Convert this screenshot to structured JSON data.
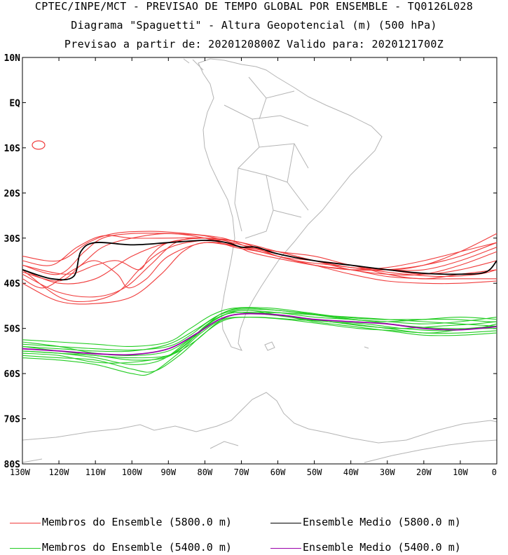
{
  "title": {
    "line1": "CPTEC/INPE/MCT - PREVISAO DE TEMPO GLOBAL POR ENSEMBLE - TQ0126L028",
    "line2": "Diagrama \"Spaguetti\" - Altura Geopotencial (m) (500 hPa)",
    "line3": "Previsao a partir de: 2020120800Z  Valido para: 2020121700Z"
  },
  "axes": {
    "lat_labels": [
      "10N",
      "EQ",
      "10S",
      "20S",
      "30S",
      "40S",
      "50S",
      "60S",
      "70S",
      "80S"
    ],
    "lat_values": [
      10,
      0,
      -10,
      -20,
      -30,
      -40,
      -50,
      -60,
      -70,
      -80
    ],
    "lon_labels": [
      "130W",
      "120W",
      "110W",
      "100W",
      "90W",
      "80W",
      "70W",
      "60W",
      "50W",
      "40W",
      "30W",
      "20W",
      "10W",
      "0"
    ],
    "lon_values": [
      -130,
      -120,
      -110,
      -100,
      -90,
      -80,
      -70,
      -60,
      -50,
      -40,
      -30,
      -20,
      -10,
      0
    ],
    "lon_range": [
      -130,
      0
    ],
    "lat_range": [
      -80,
      10
    ]
  },
  "colors": {
    "member_5800": "#f03c3c",
    "mean_5800": "#000000",
    "member_5400": "#22cc22",
    "mean_5400": "#9900aa",
    "coast": "#b4b4b4"
  },
  "legend": {
    "items": [
      {
        "label": "Membros do Ensemble (5800.0 m)",
        "color": "#f03c3c"
      },
      {
        "label": "Ensemble Medio (5800.0 m)",
        "color": "#000000"
      },
      {
        "label": "Membros do Ensemble (5400.0 m)",
        "color": "#22cc22"
      },
      {
        "label": "Ensemble Medio (5400.0 m)",
        "color": "#9900aa"
      }
    ]
  },
  "chart_data": {
    "type": "map-contours",
    "mean_5800": [
      [
        -130,
        -37
      ],
      [
        -122,
        -39
      ],
      [
        -116,
        -38.5
      ],
      [
        -114,
        -33
      ],
      [
        -110,
        -31
      ],
      [
        -100,
        -31.5
      ],
      [
        -90,
        -31
      ],
      [
        -80,
        -30.5
      ],
      [
        -74,
        -31
      ],
      [
        -70,
        -32
      ],
      [
        -66,
        -32
      ],
      [
        -60,
        -33.5
      ],
      [
        -50,
        -35
      ],
      [
        -40,
        -36
      ],
      [
        -30,
        -37
      ],
      [
        -20,
        -37.8
      ],
      [
        -10,
        -38
      ],
      [
        -3,
        -37.5
      ],
      [
        0,
        -35
      ]
    ],
    "mean_5400": [
      [
        -130,
        -54.5
      ],
      [
        -120,
        -55
      ],
      [
        -110,
        -55.6
      ],
      [
        -100,
        -55.8
      ],
      [
        -90,
        -54.5
      ],
      [
        -82,
        -51
      ],
      [
        -76,
        -48
      ],
      [
        -70,
        -46.8
      ],
      [
        -60,
        -47
      ],
      [
        -50,
        -48
      ],
      [
        -40,
        -48.5
      ],
      [
        -30,
        -49
      ],
      [
        -20,
        -50
      ],
      [
        -10,
        -50.3
      ],
      [
        0,
        -49.6
      ]
    ],
    "members_5800": [
      [
        [
          -130,
          -37
        ],
        [
          -120,
          -40
        ],
        [
          -110,
          -39
        ],
        [
          -100,
          -34
        ],
        [
          -90,
          -31
        ],
        [
          -80,
          -30
        ],
        [
          -70,
          -31
        ],
        [
          -60,
          -33
        ],
        [
          -50,
          -35
        ],
        [
          -40,
          -37
        ],
        [
          -30,
          -38
        ],
        [
          -20,
          -38
        ],
        [
          -10,
          -36
        ],
        [
          0,
          -33
        ]
      ],
      [
        [
          -130,
          -36
        ],
        [
          -120,
          -38
        ],
        [
          -113,
          -33
        ],
        [
          -108,
          -30
        ],
        [
          -100,
          -29
        ],
        [
          -90,
          -29
        ],
        [
          -80,
          -29.5
        ],
        [
          -70,
          -31.5
        ],
        [
          -60,
          -33
        ],
        [
          -50,
          -34
        ],
        [
          -40,
          -36
        ],
        [
          -30,
          -37
        ],
        [
          -20,
          -36
        ],
        [
          -10,
          -33
        ],
        [
          0,
          -29
        ]
      ],
      [
        [
          -130,
          -38
        ],
        [
          -120,
          -42
        ],
        [
          -110,
          -43
        ],
        [
          -102,
          -41
        ],
        [
          -95,
          -36
        ],
        [
          -88,
          -31
        ],
        [
          -80,
          -30
        ],
        [
          -70,
          -32
        ],
        [
          -60,
          -34
        ],
        [
          -50,
          -36
        ],
        [
          -40,
          -37
        ],
        [
          -30,
          -38.5
        ],
        [
          -20,
          -39
        ],
        [
          -10,
          -39
        ],
        [
          0,
          -39
        ]
      ],
      [
        [
          -130,
          -40
        ],
        [
          -120,
          -44
        ],
        [
          -110,
          -44.5
        ],
        [
          -100,
          -43
        ],
        [
          -92,
          -38
        ],
        [
          -86,
          -33
        ],
        [
          -80,
          -31
        ],
        [
          -70,
          -32
        ],
        [
          -60,
          -33
        ],
        [
          -50,
          -35
        ],
        [
          -40,
          -36
        ],
        [
          -30,
          -37
        ],
        [
          -20,
          -38
        ],
        [
          -10,
          -37
        ],
        [
          0,
          -35
        ]
      ],
      [
        [
          -130,
          -35
        ],
        [
          -122,
          -36
        ],
        [
          -115,
          -32
        ],
        [
          -108,
          -29.5
        ],
        [
          -100,
          -30
        ],
        [
          -90,
          -30
        ],
        [
          -80,
          -30
        ],
        [
          -70,
          -31
        ],
        [
          -60,
          -34
        ],
        [
          -50,
          -36
        ],
        [
          -40,
          -38
        ],
        [
          -30,
          -39.5
        ],
        [
          -20,
          -40
        ],
        [
          -10,
          -40
        ],
        [
          0,
          -39.5
        ]
      ],
      [
        [
          -130,
          -34
        ],
        [
          -120,
          -35
        ],
        [
          -112,
          -31
        ],
        [
          -105,
          -29
        ],
        [
          -95,
          -28.5
        ],
        [
          -85,
          -29
        ],
        [
          -75,
          -30
        ],
        [
          -68,
          -32
        ],
        [
          -60,
          -33.5
        ],
        [
          -50,
          -35
        ],
        [
          -40,
          -36.5
        ],
        [
          -30,
          -37
        ],
        [
          -20,
          -37
        ],
        [
          -10,
          -35
        ],
        [
          0,
          -32
        ]
      ],
      [
        [
          -130,
          -39
        ],
        [
          -124,
          -41
        ],
        [
          -116,
          -37
        ],
        [
          -110,
          -35
        ],
        [
          -104,
          -38
        ],
        [
          -101,
          -41
        ],
        [
          -96,
          -39
        ],
        [
          -90,
          -34
        ],
        [
          -80,
          -31
        ],
        [
          -70,
          -32
        ],
        [
          -60,
          -34
        ],
        [
          -50,
          -36
        ],
        [
          -40,
          -37
        ],
        [
          -30,
          -37
        ],
        [
          -20,
          -36
        ],
        [
          -10,
          -34
        ],
        [
          0,
          -31
        ]
      ],
      [
        [
          -130,
          -36
        ],
        [
          -118,
          -38
        ],
        [
          -110,
          -36
        ],
        [
          -104,
          -35
        ],
        [
          -98,
          -37
        ],
        [
          -95,
          -34
        ],
        [
          -90,
          -31
        ],
        [
          -80,
          -30
        ],
        [
          -70,
          -31
        ],
        [
          -60,
          -34
        ],
        [
          -50,
          -35
        ],
        [
          -40,
          -36
        ],
        [
          -30,
          -38
        ],
        [
          -20,
          -39
        ],
        [
          -10,
          -38
        ],
        [
          0,
          -37
        ]
      ],
      [
        [
          -130,
          -37
        ],
        [
          -120,
          -43
        ],
        [
          -112,
          -44
        ],
        [
          -104,
          -42
        ],
        [
          -98,
          -37
        ],
        [
          -92,
          -33
        ],
        [
          -85,
          -31
        ],
        [
          -75,
          -30.5
        ],
        [
          -68,
          -33
        ],
        [
          -60,
          -34.5
        ],
        [
          -50,
          -36
        ],
        [
          -40,
          -37
        ],
        [
          -30,
          -36.5
        ],
        [
          -20,
          -35
        ],
        [
          -10,
          -33
        ],
        [
          0,
          -31
        ]
      ],
      [
        [
          -130,
          -37.5
        ],
        [
          -120,
          -39.5
        ],
        [
          -114,
          -36
        ],
        [
          -108,
          -32
        ],
        [
          -100,
          -30
        ],
        [
          -90,
          -29
        ],
        [
          -80,
          -30
        ],
        [
          -72,
          -32
        ],
        [
          -65,
          -33
        ],
        [
          -55,
          -35
        ],
        [
          -45,
          -36
        ],
        [
          -35,
          -37
        ],
        [
          -25,
          -38
        ],
        [
          -15,
          -38.5
        ],
        [
          -5,
          -38
        ],
        [
          0,
          -37
        ]
      ]
    ],
    "members_5400": [
      [
        [
          -130,
          -53
        ],
        [
          -120,
          -54
        ],
        [
          -110,
          -55.5
        ],
        [
          -100,
          -56
        ],
        [
          -90,
          -55
        ],
        [
          -82,
          -51
        ],
        [
          -76,
          -47
        ],
        [
          -70,
          -45.5
        ],
        [
          -60,
          -46
        ],
        [
          -50,
          -47
        ],
        [
          -40,
          -48
        ],
        [
          -30,
          -48.5
        ],
        [
          -20,
          -49
        ],
        [
          -10,
          -48.5
        ],
        [
          0,
          -47.5
        ]
      ],
      [
        [
          -130,
          -54
        ],
        [
          -120,
          -55
        ],
        [
          -110,
          -56
        ],
        [
          -100,
          -56.5
        ],
        [
          -90,
          -56
        ],
        [
          -83,
          -53
        ],
        [
          -77,
          -49
        ],
        [
          -72,
          -47
        ],
        [
          -62,
          -46.5
        ],
        [
          -50,
          -47
        ],
        [
          -40,
          -47.5
        ],
        [
          -30,
          -48
        ],
        [
          -20,
          -48.5
        ],
        [
          -10,
          -49
        ],
        [
          0,
          -49.5
        ]
      ],
      [
        [
          -130,
          -55
        ],
        [
          -120,
          -55.5
        ],
        [
          -110,
          -56.5
        ],
        [
          -100,
          -58
        ],
        [
          -92,
          -57
        ],
        [
          -85,
          -53
        ],
        [
          -78,
          -48.5
        ],
        [
          -72,
          -46.5
        ],
        [
          -62,
          -47
        ],
        [
          -52,
          -48
        ],
        [
          -40,
          -49
        ],
        [
          -30,
          -50
        ],
        [
          -20,
          -51
        ],
        [
          -10,
          -51
        ],
        [
          0,
          -50.5
        ]
      ],
      [
        [
          -130,
          -56
        ],
        [
          -120,
          -56.5
        ],
        [
          -110,
          -57
        ],
        [
          -100,
          -59
        ],
        [
          -94,
          -59.5
        ],
        [
          -87,
          -56
        ],
        [
          -80,
          -51
        ],
        [
          -74,
          -48
        ],
        [
          -66,
          -47.5
        ],
        [
          -56,
          -48
        ],
        [
          -46,
          -48.5
        ],
        [
          -36,
          -49
        ],
        [
          -26,
          -50
        ],
        [
          -16,
          -50.5
        ],
        [
          -6,
          -50
        ],
        [
          0,
          -49
        ]
      ],
      [
        [
          -130,
          -52.5
        ],
        [
          -120,
          -53
        ],
        [
          -110,
          -53.5
        ],
        [
          -100,
          -54
        ],
        [
          -90,
          -53
        ],
        [
          -84,
          -50
        ],
        [
          -78,
          -47
        ],
        [
          -72,
          -45.5
        ],
        [
          -62,
          -45.5
        ],
        [
          -52,
          -46.5
        ],
        [
          -42,
          -47.5
        ],
        [
          -32,
          -48
        ],
        [
          -22,
          -48
        ],
        [
          -12,
          -48
        ],
        [
          -2,
          -48.5
        ],
        [
          0,
          -48.5
        ]
      ],
      [
        [
          -130,
          -55.5
        ],
        [
          -120,
          -56
        ],
        [
          -110,
          -57.5
        ],
        [
          -100,
          -57.5
        ],
        [
          -90,
          -56
        ],
        [
          -83,
          -52
        ],
        [
          -77,
          -48
        ],
        [
          -70,
          -46
        ],
        [
          -60,
          -47
        ],
        [
          -50,
          -48.5
        ],
        [
          -40,
          -49.5
        ],
        [
          -30,
          -50.5
        ],
        [
          -20,
          -51.5
        ],
        [
          -10,
          -51.5
        ],
        [
          0,
          -51
        ]
      ],
      [
        [
          -130,
          -54
        ],
        [
          -120,
          -54.5
        ],
        [
          -110,
          -55
        ],
        [
          -100,
          -55
        ],
        [
          -90,
          -53.5
        ],
        [
          -82,
          -50
        ],
        [
          -76,
          -47
        ],
        [
          -70,
          -46
        ],
        [
          -60,
          -46.5
        ],
        [
          -50,
          -47.5
        ],
        [
          -40,
          -48
        ],
        [
          -30,
          -48.5
        ],
        [
          -20,
          -48
        ],
        [
          -10,
          -47.5
        ],
        [
          0,
          -48
        ]
      ],
      [
        [
          -130,
          -56.5
        ],
        [
          -120,
          -57
        ],
        [
          -110,
          -58
        ],
        [
          -100,
          -60
        ],
        [
          -95,
          -60
        ],
        [
          -88,
          -56
        ],
        [
          -81,
          -51
        ],
        [
          -75,
          -48
        ],
        [
          -68,
          -47.5
        ],
        [
          -58,
          -48
        ],
        [
          -48,
          -49
        ],
        [
          -38,
          -50
        ],
        [
          -28,
          -50.5
        ],
        [
          -18,
          -51
        ],
        [
          -8,
          -50
        ],
        [
          0,
          -49.5
        ]
      ],
      [
        [
          -130,
          -53.5
        ],
        [
          -120,
          -54
        ],
        [
          -110,
          -54.5
        ],
        [
          -100,
          -54.8
        ],
        [
          -90,
          -54
        ],
        [
          -84,
          -51.5
        ],
        [
          -79,
          -48.5
        ],
        [
          -73,
          -46
        ],
        [
          -64,
          -45.8
        ],
        [
          -54,
          -46.5
        ],
        [
          -44,
          -47.5
        ],
        [
          -34,
          -48.5
        ],
        [
          -24,
          -49.5
        ],
        [
          -14,
          -50
        ],
        [
          -4,
          -50
        ],
        [
          0,
          -50
        ]
      ],
      [
        [
          -130,
          -55
        ],
        [
          -120,
          -55.5
        ],
        [
          -110,
          -56
        ],
        [
          -100,
          -57
        ],
        [
          -91,
          -56.5
        ],
        [
          -85,
          -53.5
        ],
        [
          -80,
          -49.5
        ],
        [
          -74,
          -46.8
        ],
        [
          -66,
          -46.5
        ],
        [
          -56,
          -47.5
        ],
        [
          -46,
          -48.5
        ],
        [
          -36,
          -49.5
        ],
        [
          -26,
          -50
        ],
        [
          -16,
          -49.5
        ],
        [
          -6,
          -49
        ],
        [
          0,
          -48.5
        ]
      ]
    ]
  }
}
